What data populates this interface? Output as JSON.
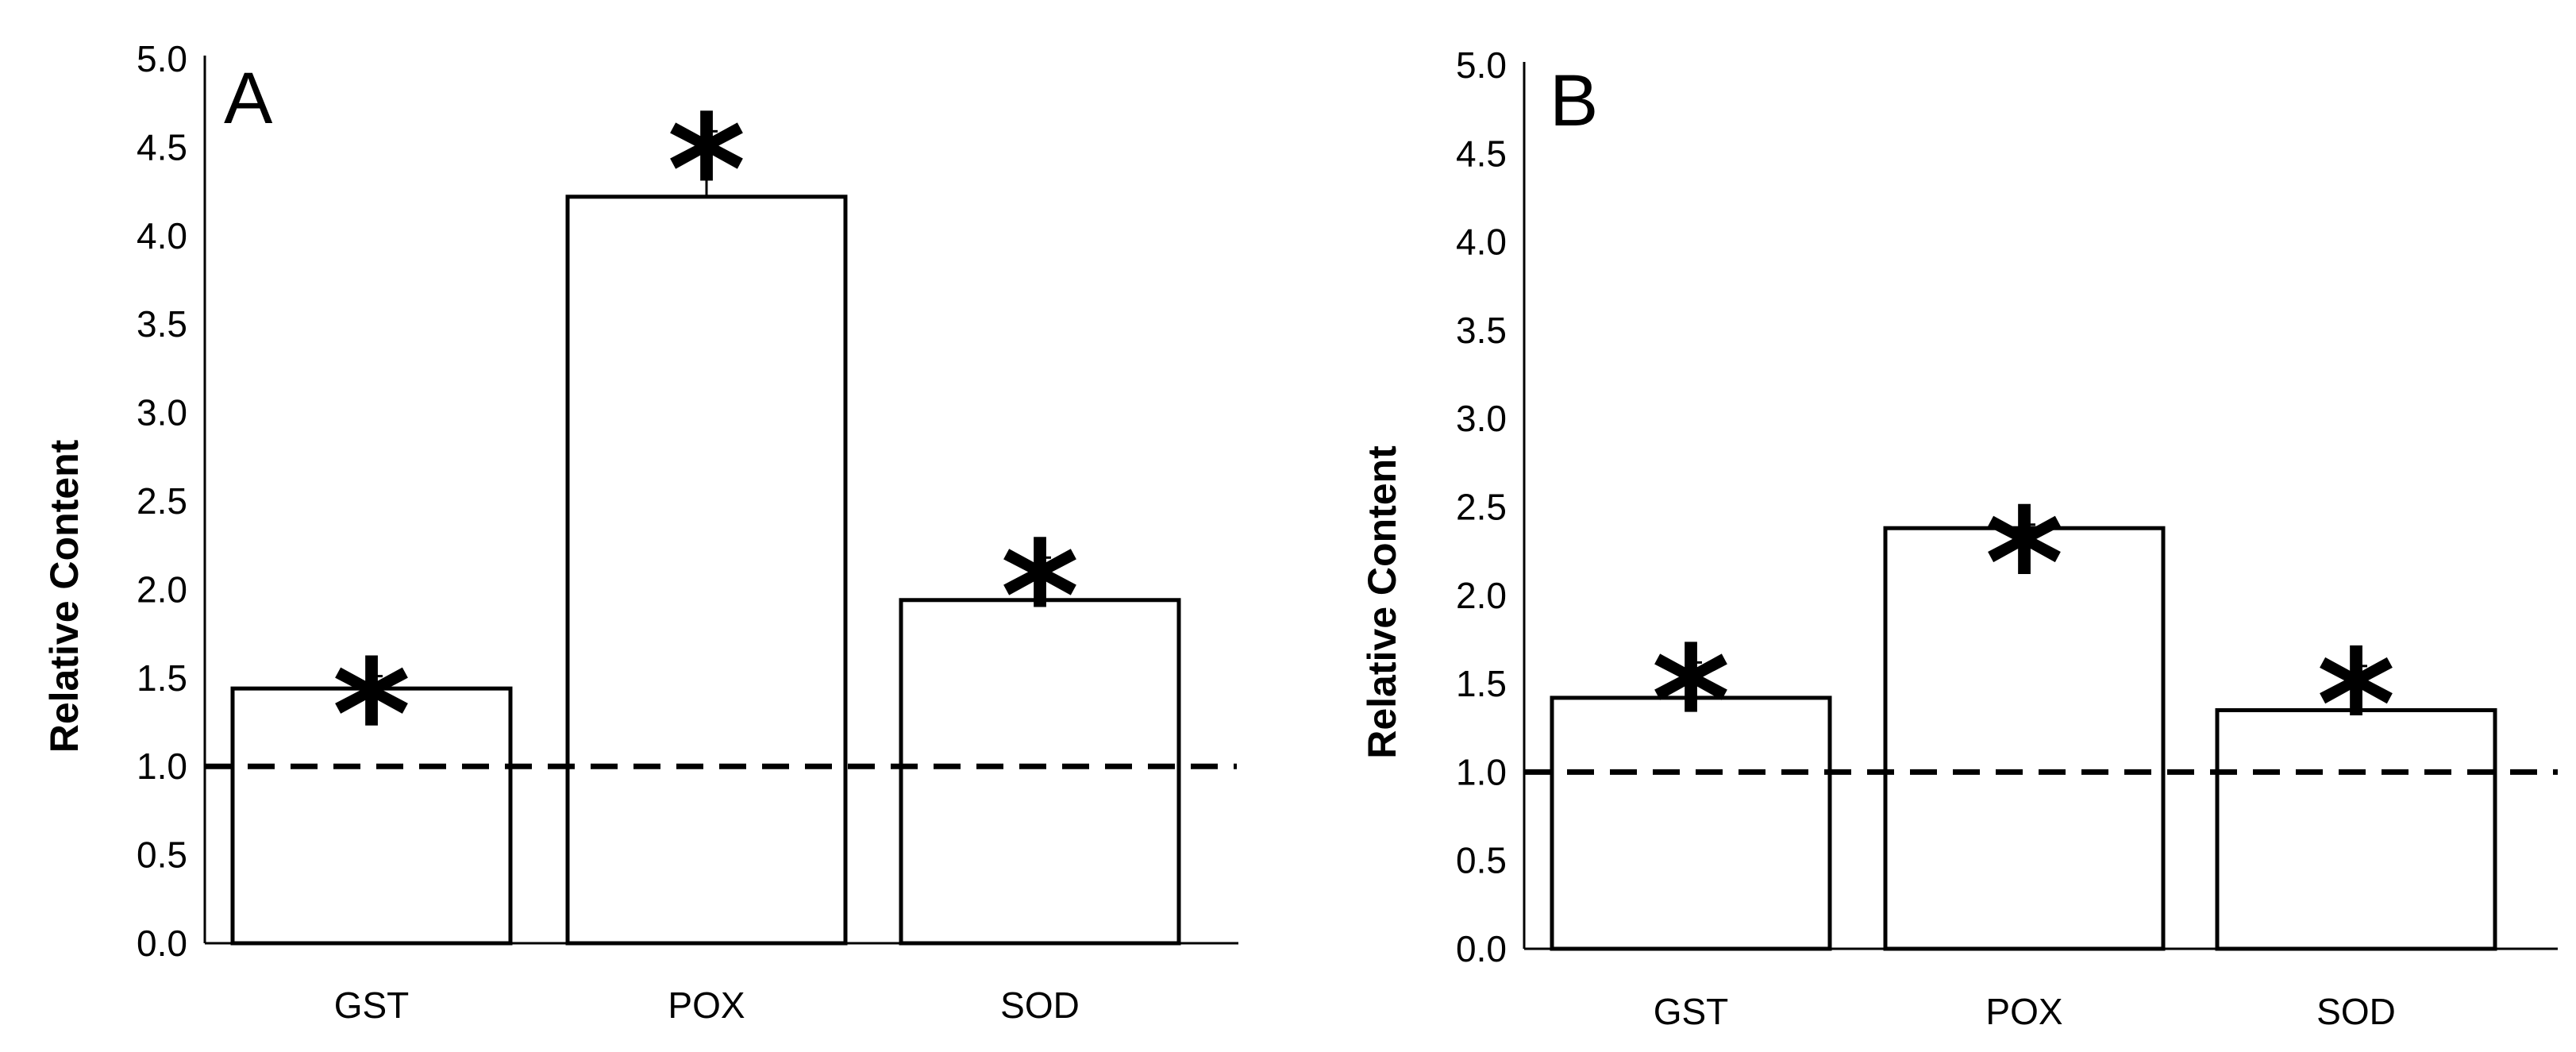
{
  "chart_data": [
    {
      "type": "bar",
      "panel_label": "A",
      "ylabel": "Relative Content",
      "xlabel": "",
      "categories": [
        "GST",
        "POX",
        "SOD"
      ],
      "values": [
        1.44,
        4.22,
        1.94
      ],
      "errors": [
        0.07,
        0.37,
        0.24
      ],
      "significance": [
        "*",
        "*",
        "*"
      ],
      "ylim": [
        0,
        5
      ],
      "yticks": [
        "0.0",
        "0.5",
        "1.0",
        "1.5",
        "2.0",
        "2.5",
        "3.0",
        "3.5",
        "4.0",
        "4.5",
        "5.0"
      ],
      "reference_line": 1.0,
      "bar_color": "#ffffff",
      "edge_color": "#000000"
    },
    {
      "type": "bar",
      "panel_label": "B",
      "ylabel": "Relative Content",
      "xlabel": "",
      "categories": [
        "GST",
        "POX",
        "SOD"
      ],
      "values": [
        1.42,
        2.38,
        1.35
      ],
      "errors": [
        0.2,
        0.02,
        0.25
      ],
      "significance": [
        "*",
        "*",
        "*"
      ],
      "ylim": [
        0,
        5
      ],
      "yticks": [
        "0.0",
        "0.5",
        "1.0",
        "1.5",
        "2.0",
        "2.5",
        "3.0",
        "3.5",
        "4.0",
        "4.5",
        "5.0"
      ],
      "reference_line": 1.0,
      "bar_color": "#ffffff",
      "edge_color": "#000000"
    }
  ]
}
